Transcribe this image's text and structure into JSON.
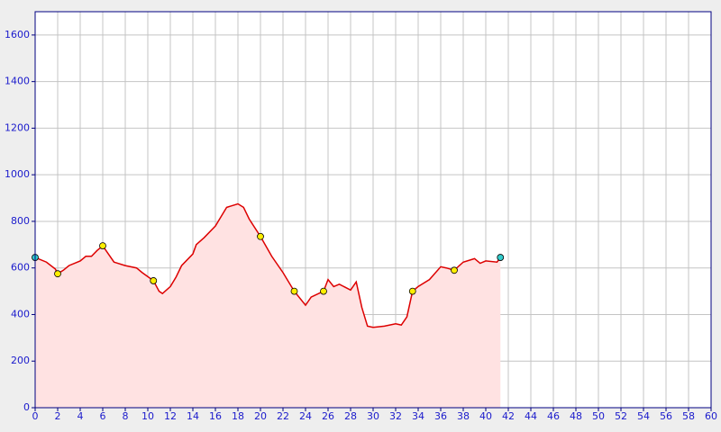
{
  "chart_data": {
    "type": "area",
    "x": [
      0,
      1,
      1.8,
      2,
      2.5,
      3,
      4,
      4.5,
      5,
      5.5,
      6,
      6.5,
      7,
      8,
      9,
      9.5,
      10.5,
      11,
      11.3,
      12,
      12.5,
      13,
      14,
      14.3,
      15,
      16,
      16.5,
      17,
      18,
      18.5,
      19,
      20,
      21,
      22,
      23,
      24,
      24.5,
      25.6,
      26,
      26.5,
      27,
      28,
      28.5,
      29,
      29.5,
      30,
      31,
      32,
      32.5,
      33,
      33.5,
      34,
      35,
      36,
      36.5,
      37.2,
      38,
      39,
      39.5,
      40,
      41,
      41.3
    ],
    "values": [
      645,
      625,
      595,
      575,
      590,
      610,
      630,
      650,
      650,
      675,
      695,
      660,
      625,
      610,
      600,
      580,
      545,
      500,
      490,
      520,
      560,
      610,
      660,
      700,
      730,
      780,
      820,
      860,
      875,
      860,
      810,
      735,
      650,
      580,
      500,
      440,
      475,
      500,
      550,
      520,
      530,
      505,
      540,
      430,
      350,
      345,
      350,
      360,
      355,
      390,
      500,
      520,
      550,
      605,
      600,
      590,
      625,
      640,
      620,
      630,
      625,
      645
    ],
    "color": "#dd0000",
    "fill": "#ffe2e2",
    "points": {
      "x": [
        0,
        2,
        6,
        10.5,
        20,
        23,
        25.6,
        33.5,
        37.2,
        41.3
      ],
      "values": [
        645,
        575,
        695,
        545,
        735,
        500,
        500,
        500,
        590,
        645
      ],
      "colors": [
        "#33cccc",
        "#ffee00",
        "#ffee00",
        "#ffee00",
        "#ffee00",
        "#ffee00",
        "#ffee00",
        "#ffee00",
        "#ffee00",
        "#33cccc"
      ]
    },
    "xlim": [
      0,
      60
    ],
    "xticks": [
      0,
      2,
      4,
      6,
      8,
      10,
      12,
      14,
      16,
      18,
      20,
      22,
      24,
      26,
      28,
      30,
      32,
      34,
      36,
      38,
      40,
      42,
      44,
      46,
      48,
      50,
      52,
      54,
      56,
      58,
      60
    ],
    "ylim": [
      0,
      1700
    ],
    "yticks": [
      0,
      200,
      400,
      600,
      800,
      1000,
      1200,
      1400,
      1600
    ],
    "grid": true
  }
}
